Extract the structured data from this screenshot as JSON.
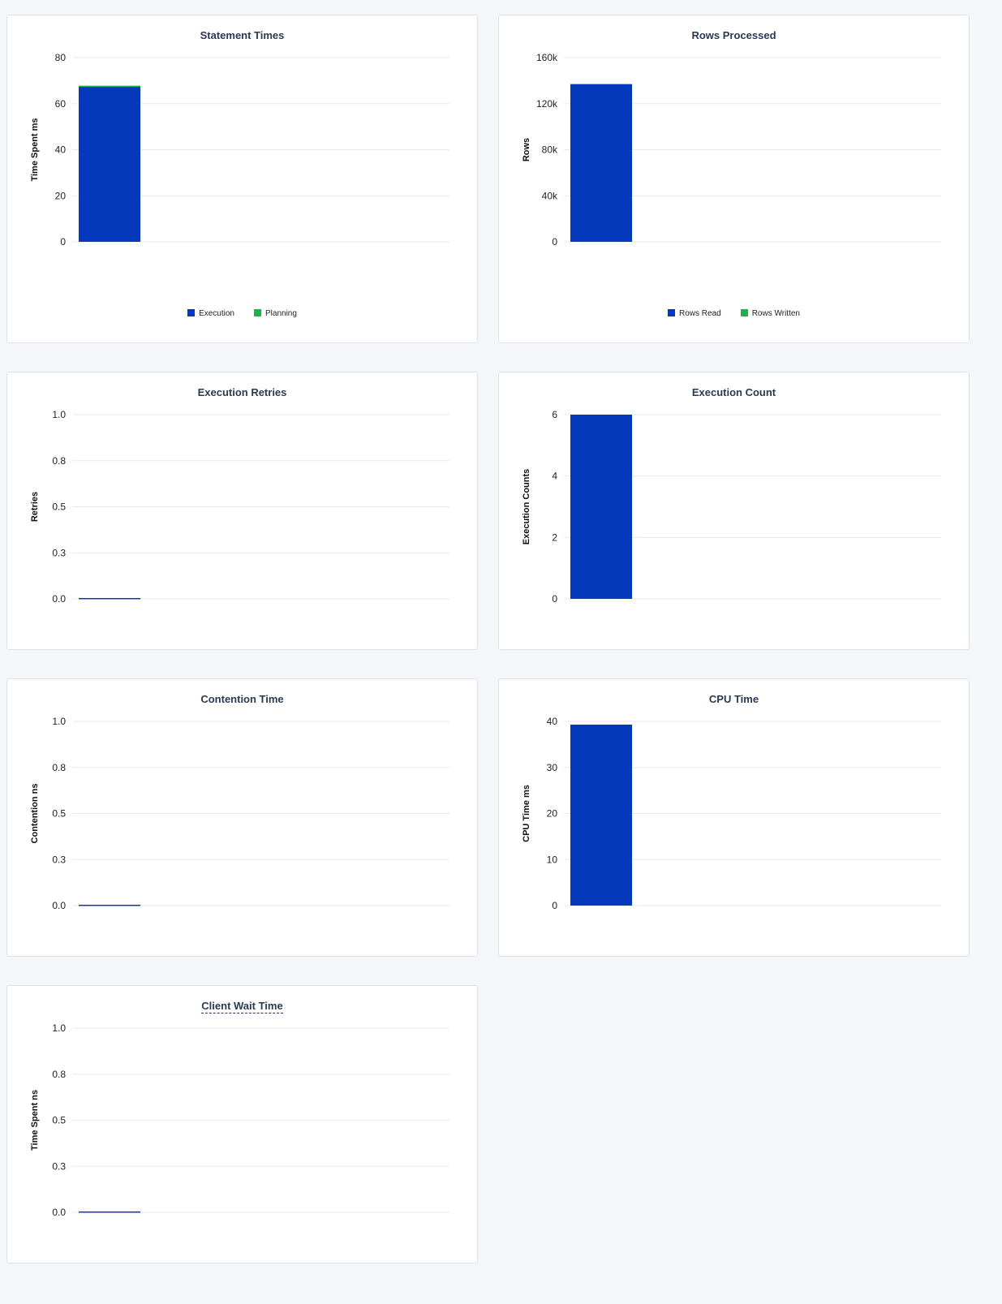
{
  "colors": {
    "primary": "#0439bb",
    "secondary": "#22b04b",
    "grid": "#e6e8eb"
  },
  "chart_data": [
    {
      "id": "statement-times",
      "type": "bar",
      "stacked": true,
      "title": "Statement Times",
      "ylabel": "Time Spent ms",
      "ylim": [
        0,
        80
      ],
      "yticks": [
        "0",
        "20",
        "40",
        "60",
        "80"
      ],
      "series": [
        {
          "name": "Execution",
          "values": [
            67.3
          ],
          "color": "#0439bb"
        },
        {
          "name": "Planning",
          "values": [
            0.5
          ],
          "color": "#22b04b"
        }
      ],
      "legend": "bottom"
    },
    {
      "id": "rows-processed",
      "type": "bar",
      "stacked": true,
      "title": "Rows Processed",
      "ylabel": "Rows",
      "ylim": [
        0,
        160000
      ],
      "yticks": [
        "0",
        "40k",
        "80k",
        "120k",
        "160k"
      ],
      "series": [
        {
          "name": "Rows Read",
          "values": [
            137000
          ],
          "color": "#0439bb"
        },
        {
          "name": "Rows Written",
          "values": [
            0
          ],
          "color": "#22b04b"
        }
      ],
      "legend": "bottom"
    },
    {
      "id": "execution-retries",
      "type": "bar",
      "title": "Execution Retries",
      "ylabel": "Retries",
      "ylim": [
        0,
        1
      ],
      "yticks": [
        "0.0",
        "0.3",
        "0.5",
        "0.8",
        "1.0"
      ],
      "series": [
        {
          "values": [
            0
          ],
          "color": "#0439bb"
        }
      ]
    },
    {
      "id": "execution-count",
      "type": "bar",
      "title": "Execution Count",
      "ylabel": "Execution Counts",
      "ylim": [
        0,
        6
      ],
      "yticks": [
        "0",
        "2",
        "4",
        "6"
      ],
      "series": [
        {
          "values": [
            6
          ],
          "color": "#0439bb"
        }
      ]
    },
    {
      "id": "contention-time",
      "type": "bar",
      "title": "Contention Time",
      "ylabel": "Contention ns",
      "ylim": [
        0,
        1
      ],
      "yticks": [
        "0.0",
        "0.3",
        "0.5",
        "0.8",
        "1.0"
      ],
      "series": [
        {
          "values": [
            0
          ],
          "color": "#0439bb"
        }
      ]
    },
    {
      "id": "cpu-time",
      "type": "bar",
      "title": "CPU Time",
      "ylabel": "CPU Time ms",
      "ylim": [
        0,
        40
      ],
      "yticks": [
        "0",
        "10",
        "20",
        "30",
        "40"
      ],
      "series": [
        {
          "values": [
            39.3
          ],
          "color": "#0439bb"
        }
      ]
    },
    {
      "id": "client-wait-time",
      "type": "bar",
      "title": "Client Wait Time",
      "title_has_tooltip": true,
      "ylabel": "Time Spent ns",
      "ylim": [
        0,
        1
      ],
      "yticks": [
        "0.0",
        "0.3",
        "0.5",
        "0.8",
        "1.0"
      ],
      "series": [
        {
          "values": [
            0
          ],
          "color": "#0439bb"
        }
      ]
    }
  ]
}
